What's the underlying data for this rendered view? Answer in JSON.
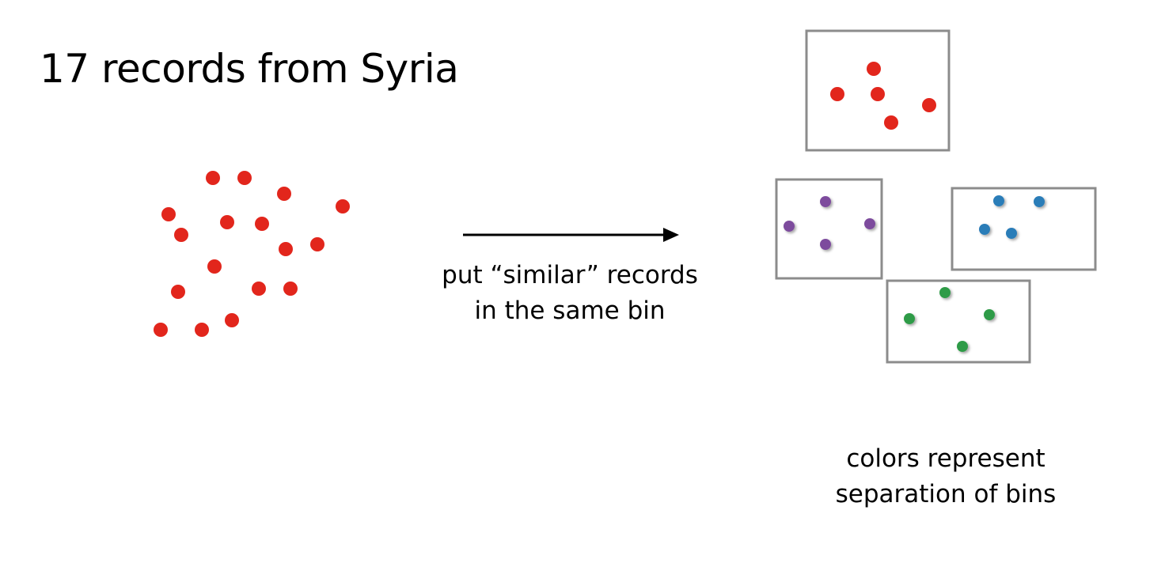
{
  "title": "17 records from Syria",
  "arrow_caption": [
    "put “similar” records",
    "in the same bin"
  ],
  "legend_caption": [
    "colors represent",
    "separation of bins"
  ],
  "record_count": 17,
  "colors": {
    "record": "#e2261c",
    "bin_border": "#8c8c8c",
    "bins": [
      "#e2261c",
      "#7d4b9d",
      "#2b7db8",
      "#2e9b47"
    ]
  },
  "bins": [
    {
      "name": "bin-red",
      "record_count": 5
    },
    {
      "name": "bin-purple",
      "record_count": 4
    },
    {
      "name": "bin-blue",
      "record_count": 4
    },
    {
      "name": "bin-green",
      "record_count": 4
    }
  ]
}
